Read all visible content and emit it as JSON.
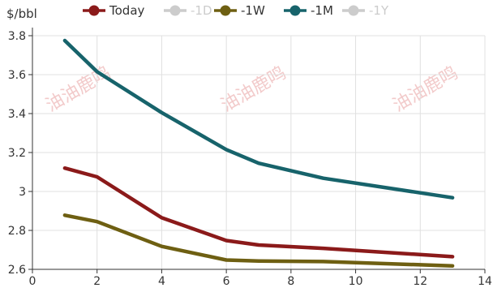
{
  "chart_data": {
    "type": "line",
    "ylabel": "$/bbl",
    "xlim": [
      0,
      14
    ],
    "ylim": [
      2.6,
      3.8
    ],
    "xticks": [
      0,
      2,
      4,
      6,
      8,
      10,
      12,
      14
    ],
    "yticks": [
      2.6,
      2.8,
      3,
      3.2,
      3.4,
      3.6,
      3.8
    ],
    "ytick_labels": [
      "2.6",
      "2.8",
      "3",
      "3.2",
      "3.4",
      "3.6",
      "3.8"
    ],
    "grid": true,
    "legend_position": "top",
    "watermark": "油油鹿鸣",
    "series": [
      {
        "name": "Today",
        "color": "#8b1a1a",
        "visible": true,
        "points": [
          [
            1,
            3.12
          ],
          [
            2,
            3.075
          ],
          [
            4,
            2.865
          ],
          [
            6,
            2.748
          ],
          [
            7,
            2.725
          ],
          [
            9,
            2.708
          ],
          [
            13,
            2.665
          ]
        ]
      },
      {
        "name": "-1D",
        "color": "#cccccc",
        "visible": false,
        "points": []
      },
      {
        "name": "-1W",
        "color": "#6e5f12",
        "visible": true,
        "points": [
          [
            1,
            2.878
          ],
          [
            2,
            2.845
          ],
          [
            4,
            2.718
          ],
          [
            6,
            2.648
          ],
          [
            7,
            2.643
          ],
          [
            9,
            2.64
          ],
          [
            13,
            2.618
          ]
        ]
      },
      {
        "name": "-1M",
        "color": "#17636b",
        "visible": true,
        "points": [
          [
            1,
            3.775
          ],
          [
            2,
            3.615
          ],
          [
            4,
            3.405
          ],
          [
            6,
            3.215
          ],
          [
            7,
            3.145
          ],
          [
            9,
            3.068
          ],
          [
            13,
            2.968
          ]
        ]
      },
      {
        "name": "-1Y",
        "color": "#cccccc",
        "visible": false,
        "points": []
      }
    ]
  }
}
